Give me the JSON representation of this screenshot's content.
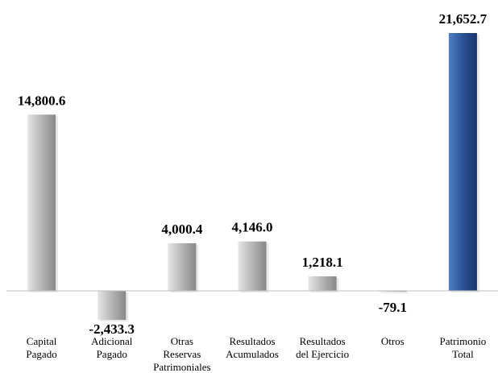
{
  "chart_data": {
    "type": "bar",
    "title": "",
    "xlabel": "",
    "ylabel": "",
    "ylim": [
      -2500,
      22000
    ],
    "grid": false,
    "legend": "none",
    "categories": [
      [
        "Capital",
        "Pagado"
      ],
      [
        "Adicional",
        "Pagado"
      ],
      [
        "Otras",
        "Reservas",
        "Patrimoniales"
      ],
      [
        "Resultados",
        "Acumulados"
      ],
      [
        "Resultados",
        "del Ejercicio"
      ],
      [
        "Otros"
      ],
      [
        "Patrimonio",
        "Total"
      ]
    ],
    "values": [
      14800.6,
      -2433.3,
      4000.4,
      4146.0,
      1218.1,
      -79.1,
      21652.7
    ],
    "value_labels": [
      "14,800.6",
      "-2,433.3",
      "4,000.4",
      "4,146.0",
      "1,218.1",
      "-79.1",
      "21,652.7"
    ],
    "bar_styles": [
      "gray",
      "gray",
      "gray",
      "gray",
      "gray",
      "gray",
      "blue"
    ]
  },
  "colors": {
    "gray_dark": "#8c8c8c",
    "gray_light": "#e0e0e0",
    "blue_dark": "#1c3f78",
    "blue_light": "#4a74b8",
    "axis": "#bfbfbf"
  }
}
